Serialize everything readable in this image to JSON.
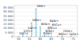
{
  "chart_data": {
    "type": "bar",
    "x": [
      50,
      52,
      54,
      56,
      58,
      60,
      61,
      62,
      63,
      64,
      65,
      68,
      70,
      74
    ],
    "values": [
      500,
      3500,
      900,
      17000,
      34000,
      12000,
      500,
      1800,
      350,
      900,
      200,
      150,
      250,
      180
    ],
    "annotations": [
      "50Cr+",
      "52Cr+",
      "54Cr+",
      "56Fe+",
      "58Ni+",
      "60Ni+",
      "61Ni+",
      "62Ni+",
      "63Cu+",
      "64Ni+",
      "65Cu+",
      "68Zn+",
      "70Ge+",
      "74Ge+"
    ],
    "color": "#b8dde8",
    "xlim": [
      48,
      77
    ],
    "xticks": [
      50,
      55,
      60,
      65,
      70,
      75
    ],
    "ylim": [
      0,
      38000
    ],
    "yticks": [
      0,
      {
        "value": 5000,
        "label": "5 000"
      },
      {
        "value": 10000,
        "label": "10 000"
      },
      {
        "value": 15000,
        "label": "15 000"
      },
      {
        "value": 20000,
        "label": "20 000"
      },
      {
        "value": 25000,
        "label": "25 000"
      },
      {
        "value": 30000,
        "label": "30 000"
      },
      {
        "value": 35000,
        "label": "35 000"
      }
    ],
    "grid": true
  }
}
